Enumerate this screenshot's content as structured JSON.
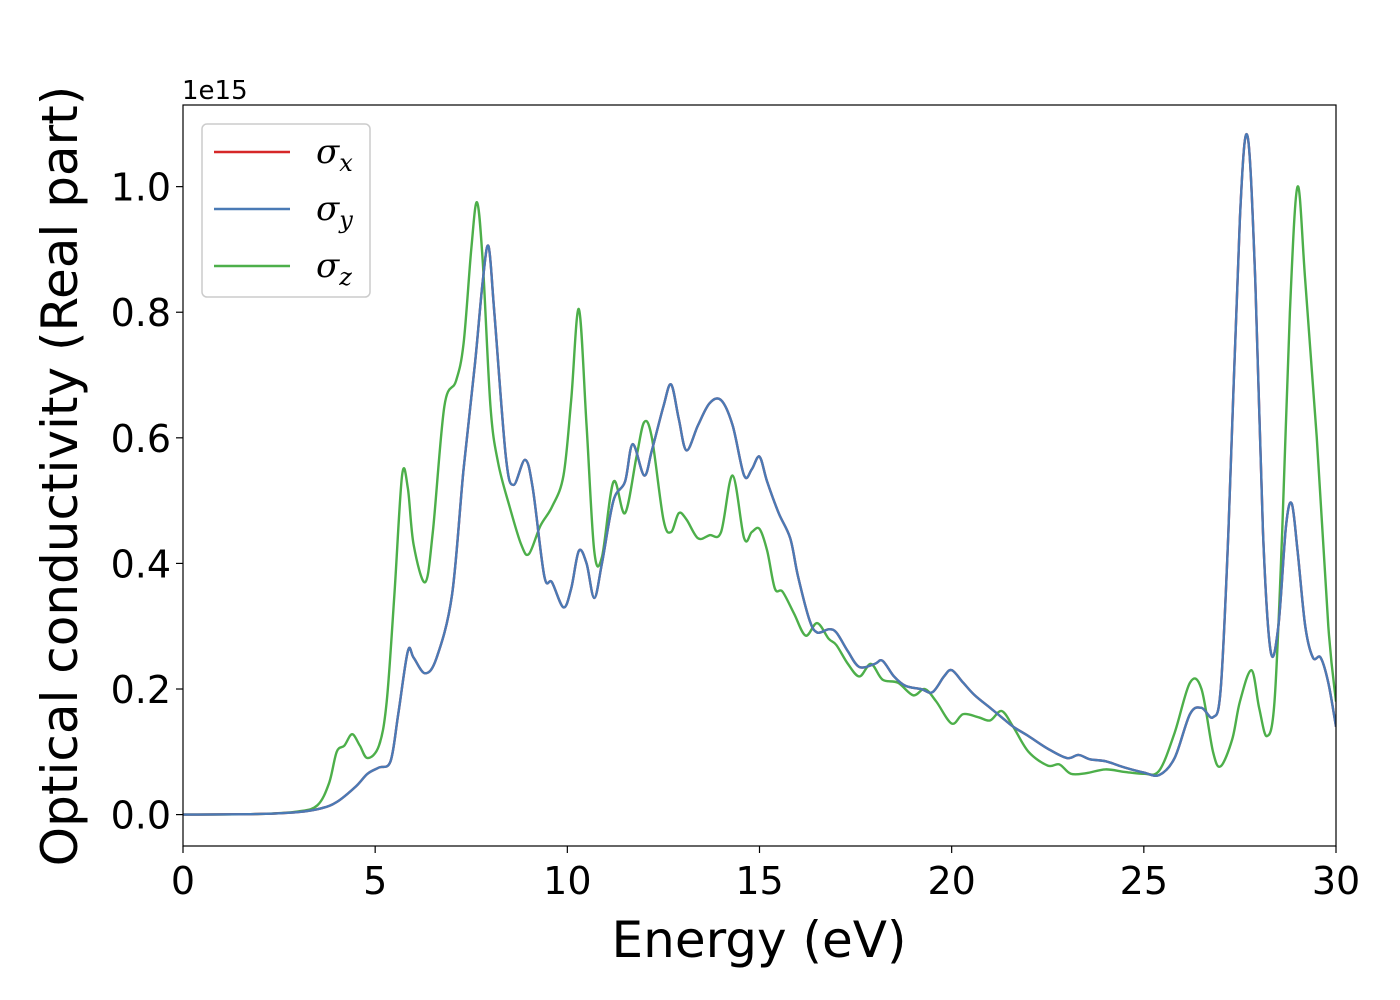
{
  "chart_data": {
    "type": "line",
    "xlabel": "Energy (eV)",
    "ylabel": "Optical conductivity (Real part)",
    "y_offset_label": "1e15",
    "xlim": [
      0,
      30
    ],
    "ylim": [
      -0.05,
      1.13
    ],
    "x_ticks": [
      0,
      5,
      10,
      15,
      20,
      25,
      30
    ],
    "x_tick_labels": [
      "0",
      "5",
      "10",
      "15",
      "20",
      "25",
      "30"
    ],
    "y_ticks": [
      0.0,
      0.2,
      0.4,
      0.6,
      0.8,
      1.0
    ],
    "y_tick_labels": [
      "0.0",
      "0.2",
      "0.4",
      "0.6",
      "0.8",
      "1.0"
    ],
    "grid": false,
    "legend_position": "top-left",
    "series": [
      {
        "name": "σx",
        "symbol": "σ",
        "subscript": "x",
        "color": "#d62728",
        "points": [
          [
            0,
            0
          ],
          [
            2,
            0.001
          ],
          [
            3,
            0.004
          ],
          [
            3.6,
            0.01
          ],
          [
            4,
            0.02
          ],
          [
            4.5,
            0.045
          ],
          [
            4.8,
            0.065
          ],
          [
            5.1,
            0.075
          ],
          [
            5.4,
            0.085
          ],
          [
            5.6,
            0.16
          ],
          [
            5.85,
            0.26
          ],
          [
            6,
            0.25
          ],
          [
            6.3,
            0.225
          ],
          [
            6.6,
            0.25
          ],
          [
            7,
            0.35
          ],
          [
            7.3,
            0.55
          ],
          [
            7.6,
            0.72
          ],
          [
            7.8,
            0.85
          ],
          [
            7.95,
            0.905
          ],
          [
            8.1,
            0.8
          ],
          [
            8.4,
            0.57
          ],
          [
            8.6,
            0.525
          ],
          [
            8.9,
            0.565
          ],
          [
            9.1,
            0.52
          ],
          [
            9.4,
            0.38
          ],
          [
            9.6,
            0.37
          ],
          [
            9.9,
            0.33
          ],
          [
            10.1,
            0.36
          ],
          [
            10.3,
            0.42
          ],
          [
            10.5,
            0.4
          ],
          [
            10.7,
            0.345
          ],
          [
            10.9,
            0.4
          ],
          [
            11.2,
            0.5
          ],
          [
            11.5,
            0.53
          ],
          [
            11.7,
            0.59
          ],
          [
            12,
            0.54
          ],
          [
            12.2,
            0.58
          ],
          [
            12.5,
            0.65
          ],
          [
            12.7,
            0.685
          ],
          [
            12.9,
            0.63
          ],
          [
            13.1,
            0.58
          ],
          [
            13.4,
            0.62
          ],
          [
            13.7,
            0.655
          ],
          [
            14,
            0.66
          ],
          [
            14.3,
            0.62
          ],
          [
            14.6,
            0.54
          ],
          [
            14.8,
            0.55
          ],
          [
            15,
            0.57
          ],
          [
            15.2,
            0.53
          ],
          [
            15.5,
            0.48
          ],
          [
            15.8,
            0.44
          ],
          [
            16,
            0.38
          ],
          [
            16.3,
            0.31
          ],
          [
            16.5,
            0.29
          ],
          [
            16.8,
            0.295
          ],
          [
            17,
            0.29
          ],
          [
            17.3,
            0.26
          ],
          [
            17.6,
            0.235
          ],
          [
            18,
            0.24
          ],
          [
            18.2,
            0.245
          ],
          [
            18.5,
            0.22
          ],
          [
            18.8,
            0.205
          ],
          [
            19.2,
            0.2
          ],
          [
            19.5,
            0.195
          ],
          [
            19.8,
            0.22
          ],
          [
            20,
            0.23
          ],
          [
            20.3,
            0.21
          ],
          [
            20.6,
            0.19
          ],
          [
            21,
            0.17
          ],
          [
            21.3,
            0.155
          ],
          [
            21.6,
            0.14
          ],
          [
            22,
            0.125
          ],
          [
            22.5,
            0.105
          ],
          [
            23,
            0.09
          ],
          [
            23.3,
            0.095
          ],
          [
            23.6,
            0.088
          ],
          [
            24,
            0.085
          ],
          [
            24.5,
            0.075
          ],
          [
            25,
            0.067
          ],
          [
            25.4,
            0.063
          ],
          [
            25.8,
            0.09
          ],
          [
            26.2,
            0.16
          ],
          [
            26.5,
            0.17
          ],
          [
            26.8,
            0.155
          ],
          [
            27,
            0.2
          ],
          [
            27.2,
            0.45
          ],
          [
            27.5,
            0.95
          ],
          [
            27.7,
            1.08
          ],
          [
            27.9,
            0.85
          ],
          [
            28.1,
            0.45
          ],
          [
            28.3,
            0.26
          ],
          [
            28.5,
            0.3
          ],
          [
            28.7,
            0.46
          ],
          [
            28.85,
            0.495
          ],
          [
            29,
            0.42
          ],
          [
            29.2,
            0.3
          ],
          [
            29.4,
            0.25
          ],
          [
            29.6,
            0.25
          ],
          [
            29.8,
            0.21
          ],
          [
            30,
            0.14
          ]
        ]
      },
      {
        "name": "σy",
        "symbol": "σ",
        "subscript": "y",
        "color": "#4a7ab5",
        "points": [
          [
            0,
            0
          ],
          [
            2,
            0.001
          ],
          [
            3,
            0.004
          ],
          [
            3.6,
            0.01
          ],
          [
            4,
            0.02
          ],
          [
            4.5,
            0.045
          ],
          [
            4.8,
            0.065
          ],
          [
            5.1,
            0.075
          ],
          [
            5.4,
            0.085
          ],
          [
            5.6,
            0.16
          ],
          [
            5.85,
            0.26
          ],
          [
            6,
            0.25
          ],
          [
            6.3,
            0.225
          ],
          [
            6.6,
            0.25
          ],
          [
            7,
            0.35
          ],
          [
            7.3,
            0.55
          ],
          [
            7.6,
            0.72
          ],
          [
            7.8,
            0.85
          ],
          [
            7.95,
            0.905
          ],
          [
            8.1,
            0.8
          ],
          [
            8.4,
            0.57
          ],
          [
            8.6,
            0.525
          ],
          [
            8.9,
            0.565
          ],
          [
            9.1,
            0.52
          ],
          [
            9.4,
            0.38
          ],
          [
            9.6,
            0.37
          ],
          [
            9.9,
            0.33
          ],
          [
            10.1,
            0.36
          ],
          [
            10.3,
            0.42
          ],
          [
            10.5,
            0.4
          ],
          [
            10.7,
            0.345
          ],
          [
            10.9,
            0.4
          ],
          [
            11.2,
            0.5
          ],
          [
            11.5,
            0.53
          ],
          [
            11.7,
            0.59
          ],
          [
            12,
            0.54
          ],
          [
            12.2,
            0.58
          ],
          [
            12.5,
            0.65
          ],
          [
            12.7,
            0.685
          ],
          [
            12.9,
            0.63
          ],
          [
            13.1,
            0.58
          ],
          [
            13.4,
            0.62
          ],
          [
            13.7,
            0.655
          ],
          [
            14,
            0.66
          ],
          [
            14.3,
            0.62
          ],
          [
            14.6,
            0.54
          ],
          [
            14.8,
            0.55
          ],
          [
            15,
            0.57
          ],
          [
            15.2,
            0.53
          ],
          [
            15.5,
            0.48
          ],
          [
            15.8,
            0.44
          ],
          [
            16,
            0.38
          ],
          [
            16.3,
            0.31
          ],
          [
            16.5,
            0.29
          ],
          [
            16.8,
            0.295
          ],
          [
            17,
            0.29
          ],
          [
            17.3,
            0.26
          ],
          [
            17.6,
            0.235
          ],
          [
            18,
            0.24
          ],
          [
            18.2,
            0.245
          ],
          [
            18.5,
            0.22
          ],
          [
            18.8,
            0.205
          ],
          [
            19.2,
            0.2
          ],
          [
            19.5,
            0.195
          ],
          [
            19.8,
            0.22
          ],
          [
            20,
            0.23
          ],
          [
            20.3,
            0.21
          ],
          [
            20.6,
            0.19
          ],
          [
            21,
            0.17
          ],
          [
            21.3,
            0.155
          ],
          [
            21.6,
            0.14
          ],
          [
            22,
            0.125
          ],
          [
            22.5,
            0.105
          ],
          [
            23,
            0.09
          ],
          [
            23.3,
            0.095
          ],
          [
            23.6,
            0.088
          ],
          [
            24,
            0.085
          ],
          [
            24.5,
            0.075
          ],
          [
            25,
            0.067
          ],
          [
            25.4,
            0.063
          ],
          [
            25.8,
            0.09
          ],
          [
            26.2,
            0.16
          ],
          [
            26.5,
            0.17
          ],
          [
            26.8,
            0.155
          ],
          [
            27,
            0.2
          ],
          [
            27.2,
            0.45
          ],
          [
            27.5,
            0.95
          ],
          [
            27.7,
            1.08
          ],
          [
            27.9,
            0.85
          ],
          [
            28.1,
            0.45
          ],
          [
            28.3,
            0.26
          ],
          [
            28.5,
            0.3
          ],
          [
            28.7,
            0.46
          ],
          [
            28.85,
            0.495
          ],
          [
            29,
            0.42
          ],
          [
            29.2,
            0.3
          ],
          [
            29.4,
            0.25
          ],
          [
            29.6,
            0.25
          ],
          [
            29.8,
            0.21
          ],
          [
            30,
            0.14
          ]
        ]
      },
      {
        "name": "σz",
        "symbol": "σ",
        "subscript": "z",
        "color": "#4daf4a",
        "points": [
          [
            0,
            0
          ],
          [
            2,
            0.001
          ],
          [
            3,
            0.005
          ],
          [
            3.5,
            0.015
          ],
          [
            3.8,
            0.05
          ],
          [
            4,
            0.1
          ],
          [
            4.2,
            0.11
          ],
          [
            4.4,
            0.128
          ],
          [
            4.6,
            0.11
          ],
          [
            4.8,
            0.09
          ],
          [
            5.1,
            0.11
          ],
          [
            5.3,
            0.18
          ],
          [
            5.5,
            0.35
          ],
          [
            5.7,
            0.54
          ],
          [
            5.85,
            0.52
          ],
          [
            6,
            0.43
          ],
          [
            6.3,
            0.37
          ],
          [
            6.5,
            0.45
          ],
          [
            6.8,
            0.65
          ],
          [
            7.1,
            0.69
          ],
          [
            7.3,
            0.75
          ],
          [
            7.5,
            0.9
          ],
          [
            7.65,
            0.975
          ],
          [
            7.8,
            0.88
          ],
          [
            8,
            0.65
          ],
          [
            8.2,
            0.56
          ],
          [
            8.5,
            0.49
          ],
          [
            8.8,
            0.43
          ],
          [
            9,
            0.415
          ],
          [
            9.3,
            0.46
          ],
          [
            9.6,
            0.49
          ],
          [
            9.9,
            0.54
          ],
          [
            10.1,
            0.66
          ],
          [
            10.3,
            0.805
          ],
          [
            10.5,
            0.62
          ],
          [
            10.7,
            0.42
          ],
          [
            10.9,
            0.41
          ],
          [
            11.2,
            0.53
          ],
          [
            11.5,
            0.48
          ],
          [
            11.8,
            0.57
          ],
          [
            12,
            0.625
          ],
          [
            12.2,
            0.6
          ],
          [
            12.5,
            0.47
          ],
          [
            12.7,
            0.45
          ],
          [
            12.9,
            0.48
          ],
          [
            13.1,
            0.47
          ],
          [
            13.4,
            0.44
          ],
          [
            13.7,
            0.445
          ],
          [
            14,
            0.45
          ],
          [
            14.3,
            0.54
          ],
          [
            14.6,
            0.44
          ],
          [
            14.8,
            0.45
          ],
          [
            15,
            0.455
          ],
          [
            15.2,
            0.42
          ],
          [
            15.4,
            0.36
          ],
          [
            15.6,
            0.355
          ],
          [
            15.9,
            0.32
          ],
          [
            16.2,
            0.285
          ],
          [
            16.5,
            0.305
          ],
          [
            16.8,
            0.28
          ],
          [
            17,
            0.27
          ],
          [
            17.3,
            0.24
          ],
          [
            17.6,
            0.22
          ],
          [
            17.9,
            0.24
          ],
          [
            18.2,
            0.215
          ],
          [
            18.6,
            0.21
          ],
          [
            19,
            0.19
          ],
          [
            19.3,
            0.2
          ],
          [
            19.6,
            0.18
          ],
          [
            20,
            0.145
          ],
          [
            20.3,
            0.16
          ],
          [
            20.7,
            0.155
          ],
          [
            21,
            0.15
          ],
          [
            21.3,
            0.165
          ],
          [
            21.6,
            0.14
          ],
          [
            22,
            0.1
          ],
          [
            22.5,
            0.078
          ],
          [
            22.8,
            0.08
          ],
          [
            23.1,
            0.065
          ],
          [
            23.5,
            0.066
          ],
          [
            24,
            0.072
          ],
          [
            24.5,
            0.068
          ],
          [
            25,
            0.065
          ],
          [
            25.4,
            0.07
          ],
          [
            25.8,
            0.13
          ],
          [
            26.2,
            0.21
          ],
          [
            26.5,
            0.2
          ],
          [
            26.8,
            0.1
          ],
          [
            27,
            0.077
          ],
          [
            27.3,
            0.12
          ],
          [
            27.5,
            0.18
          ],
          [
            27.8,
            0.23
          ],
          [
            28,
            0.17
          ],
          [
            28.2,
            0.125
          ],
          [
            28.4,
            0.18
          ],
          [
            28.6,
            0.45
          ],
          [
            28.8,
            0.8
          ],
          [
            29,
            1.0
          ],
          [
            29.2,
            0.85
          ],
          [
            29.5,
            0.6
          ],
          [
            29.8,
            0.3
          ],
          [
            30,
            0.18
          ]
        ]
      }
    ]
  }
}
